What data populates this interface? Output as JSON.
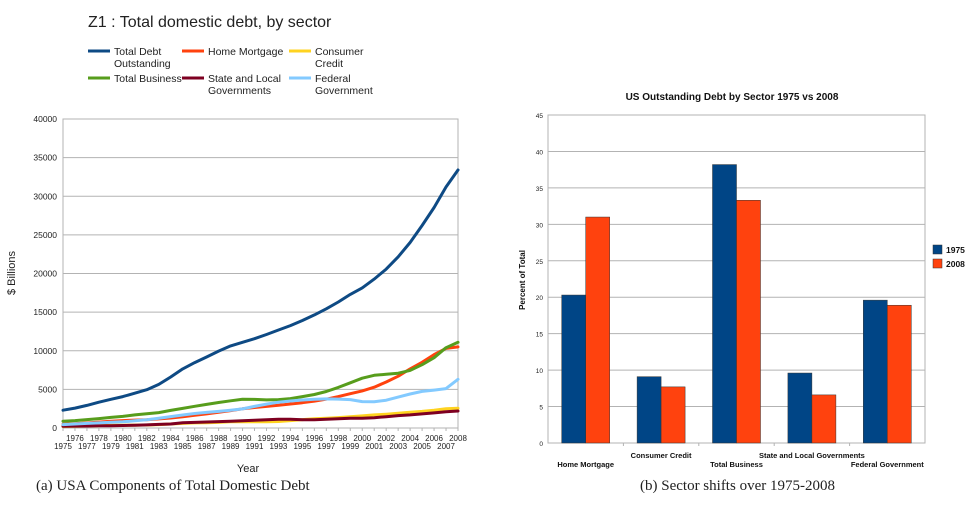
{
  "captions": {
    "a": "(a)  USA Components of Total Domestic Debt",
    "b": "(b)  Sector shifts over 1975-2008"
  },
  "chart_data": [
    {
      "type": "line",
      "title": "Z1 : Total domestic debt, by sector",
      "xlabel": "Year",
      "ylabel": "$ Billions",
      "ylim": [
        0,
        40000
      ],
      "yticks": [
        0,
        5000,
        10000,
        15000,
        20000,
        25000,
        30000,
        35000,
        40000
      ],
      "x": [
        1975,
        1976,
        1977,
        1978,
        1979,
        1980,
        1981,
        1982,
        1983,
        1984,
        1985,
        1986,
        1987,
        1988,
        1989,
        1990,
        1991,
        1992,
        1993,
        1994,
        1995,
        1996,
        1997,
        1998,
        1999,
        2000,
        2001,
        2002,
        2003,
        2004,
        2005,
        2006,
        2007,
        2008
      ],
      "grid": "horizontal",
      "legend_position": "top",
      "series": [
        {
          "name": "Total Debt Outstanding",
          "color": "#0e4a84",
          "values": [
            2300,
            2580,
            2930,
            3340,
            3720,
            4060,
            4500,
            4960,
            5640,
            6600,
            7650,
            8470,
            9190,
            9950,
            10630,
            11100,
            11560,
            12100,
            12680,
            13260,
            13920,
            14640,
            15430,
            16310,
            17290,
            18140,
            19270,
            20570,
            22160,
            24010,
            26210,
            28550,
            31200,
            33400
          ]
        },
        {
          "name": "Home Mortgage",
          "color": "#ff420e",
          "values": [
            490,
            560,
            650,
            760,
            880,
            960,
            1020,
            1070,
            1180,
            1300,
            1460,
            1640,
            1830,
            2030,
            2240,
            2490,
            2650,
            2800,
            2950,
            3110,
            3280,
            3480,
            3730,
            4060,
            4440,
            4800,
            5280,
            5950,
            6700,
            7650,
            8500,
            9500,
            10300,
            10500
          ]
        },
        {
          "name": "Consumer Credit",
          "color": "#ffd320",
          "values": [
            200,
            220,
            260,
            310,
            350,
            350,
            370,
            390,
            440,
            520,
            600,
            660,
            690,
            730,
            800,
            810,
            800,
            800,
            840,
            960,
            1090,
            1190,
            1260,
            1340,
            1460,
            1560,
            1700,
            1780,
            1900,
            2050,
            2150,
            2300,
            2500,
            2550
          ]
        },
        {
          "name": "Total Business",
          "color": "#579d1c",
          "values": [
            880,
            960,
            1090,
            1220,
            1370,
            1500,
            1690,
            1850,
            2000,
            2280,
            2540,
            2810,
            3050,
            3300,
            3520,
            3720,
            3700,
            3640,
            3680,
            3800,
            4070,
            4340,
            4720,
            5250,
            5850,
            6450,
            6820,
            6950,
            7100,
            7460,
            8200,
            9100,
            10400,
            11100
          ]
        },
        {
          "name": "State and Local Governments",
          "color": "#7e0021",
          "values": [
            230,
            240,
            260,
            280,
            300,
            330,
            360,
            400,
            460,
            520,
            690,
            720,
            780,
            830,
            880,
            950,
            1000,
            1060,
            1130,
            1120,
            1080,
            1080,
            1140,
            1190,
            1250,
            1260,
            1330,
            1460,
            1600,
            1700,
            1820,
            1960,
            2100,
            2200
          ]
        },
        {
          "name": "Federal Government",
          "color": "#83caff",
          "values": [
            440,
            520,
            600,
            660,
            740,
            800,
            930,
            1080,
            1270,
            1470,
            1680,
            1880,
            2020,
            2150,
            2300,
            2470,
            2790,
            3100,
            3340,
            3490,
            3620,
            3720,
            3770,
            3740,
            3680,
            3420,
            3400,
            3600,
            4000,
            4400,
            4740,
            4900,
            5100,
            6300
          ]
        }
      ]
    },
    {
      "type": "bar",
      "title": "US Outstanding Debt by Sector 1975 vs 2008",
      "xlabel": "",
      "ylabel": "Percent of Total",
      "ylim": [
        0,
        45
      ],
      "yticks": [
        0,
        5,
        10,
        15,
        20,
        25,
        30,
        35,
        40,
        45
      ],
      "categories": [
        "Home Mortgage",
        "Consumer Credit",
        "Total Business",
        "State and Local Governments",
        "Federal Government"
      ],
      "grid": "horizontal",
      "legend_position": "right",
      "series": [
        {
          "name": "1975",
          "color": "#004586",
          "values": [
            20.3,
            9.1,
            38.2,
            9.6,
            19.6
          ]
        },
        {
          "name": "2008",
          "color": "#ff420e",
          "values": [
            31.0,
            7.7,
            33.3,
            6.6,
            18.9
          ]
        }
      ]
    }
  ]
}
